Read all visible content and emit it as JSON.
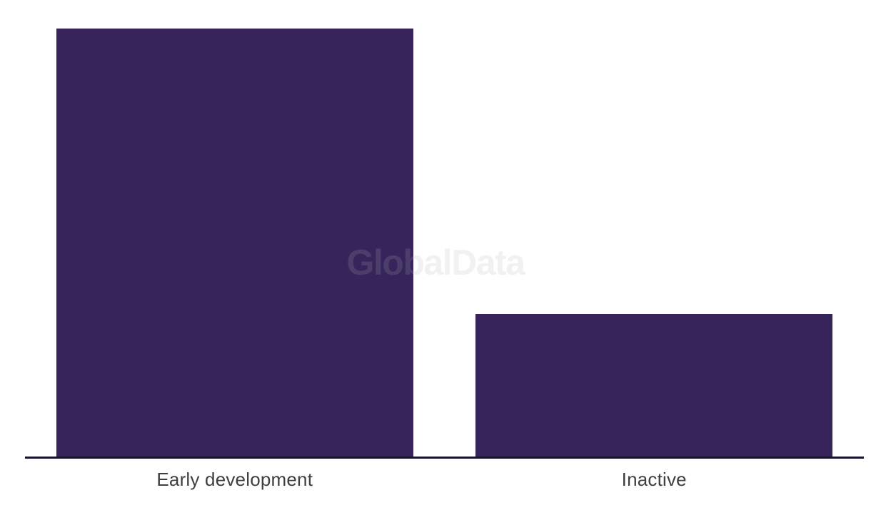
{
  "chart_data": {
    "type": "bar",
    "title": "",
    "xlabel": "",
    "ylabel": "",
    "categories": [
      "Early development",
      "Inactive"
    ],
    "values": [
      3,
      1
    ],
    "ylim": [
      0,
      3.2
    ],
    "grid": false,
    "legend": false,
    "bar_color": "#36245A",
    "axis_line_color": "#14142D",
    "label_color": "#3F3F3F",
    "background_color": "#FFFFFF",
    "watermark": {
      "text": "GlobalData",
      "color": "#B3B3B3"
    }
  }
}
